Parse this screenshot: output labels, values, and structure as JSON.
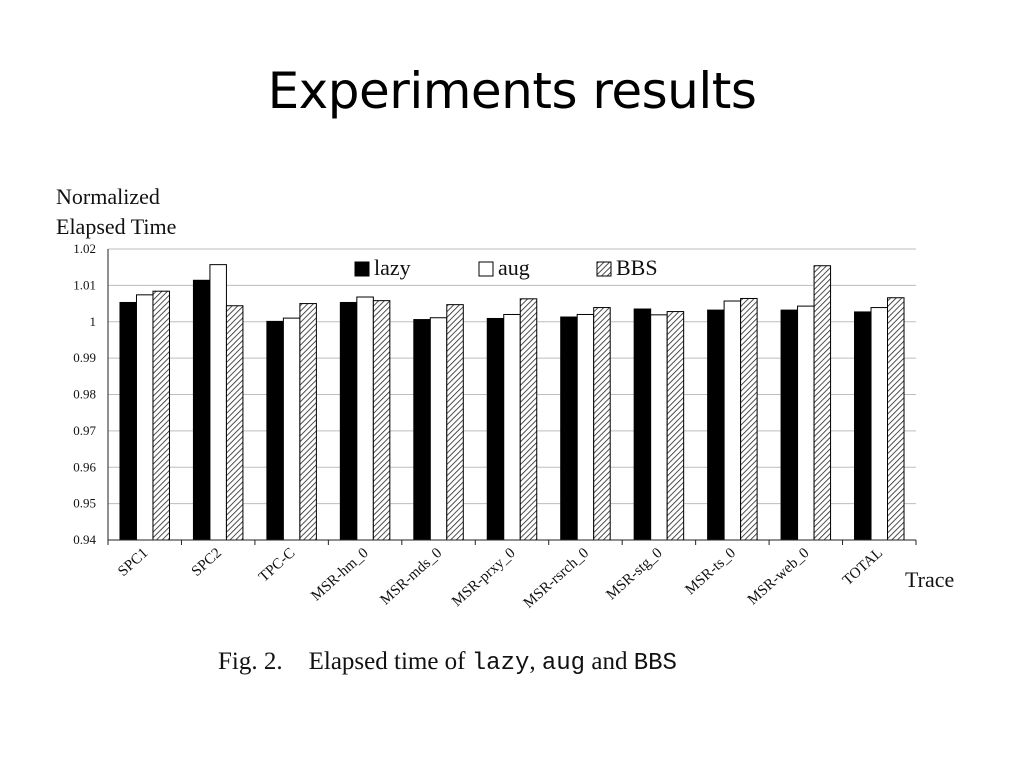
{
  "slide": {
    "title": "Experiments results"
  },
  "caption": {
    "fig_label": "Fig. 2.",
    "text_prefix": "Elapsed time of",
    "code1": "lazy",
    "sep1": ",",
    "code2": "aug",
    "and": "and",
    "code3": "BBS"
  },
  "chart_data": {
    "type": "bar",
    "ylabel_line1": "Normalized",
    "ylabel_line2": "Elapsed Time",
    "xlabel": "Trace",
    "ylim": [
      0.94,
      1.02
    ],
    "yticks": [
      0.94,
      0.95,
      0.96,
      0.97,
      0.98,
      0.99,
      1.0,
      1.01,
      1.02
    ],
    "ytick_labels": [
      "0.94",
      "0.95",
      "0.96",
      "0.97",
      "0.98",
      "0.99",
      "1",
      "1.01",
      "1.02"
    ],
    "grid": true,
    "legend_position": "top-center",
    "categories": [
      "SPC1",
      "SPC2",
      "TPC-C",
      "MSR-hm_0",
      "MSR-mds_0",
      "MSR-prxy_0",
      "MSR-rsrch_0",
      "MSR-stg_0",
      "MSR-ts_0",
      "MSR-web_0",
      "TOTAL"
    ],
    "series": [
      {
        "name": "lazy",
        "fill": "black",
        "values": [
          1.0053,
          1.0114,
          1.0001,
          1.0053,
          1.0006,
          1.0009,
          1.0013,
          1.0035,
          1.0032,
          1.0032,
          1.0027
        ]
      },
      {
        "name": "aug",
        "fill": "white",
        "values": [
          1.0074,
          1.0157,
          1.001,
          1.0068,
          1.0011,
          1.002,
          1.002,
          1.0019,
          1.0057,
          1.0043,
          1.0039
        ]
      },
      {
        "name": "BBS",
        "fill": "hatched",
        "values": [
          1.0084,
          1.0044,
          1.005,
          1.0058,
          1.0047,
          1.0063,
          1.0039,
          1.0028,
          1.0064,
          1.0154,
          1.0066
        ]
      }
    ]
  }
}
